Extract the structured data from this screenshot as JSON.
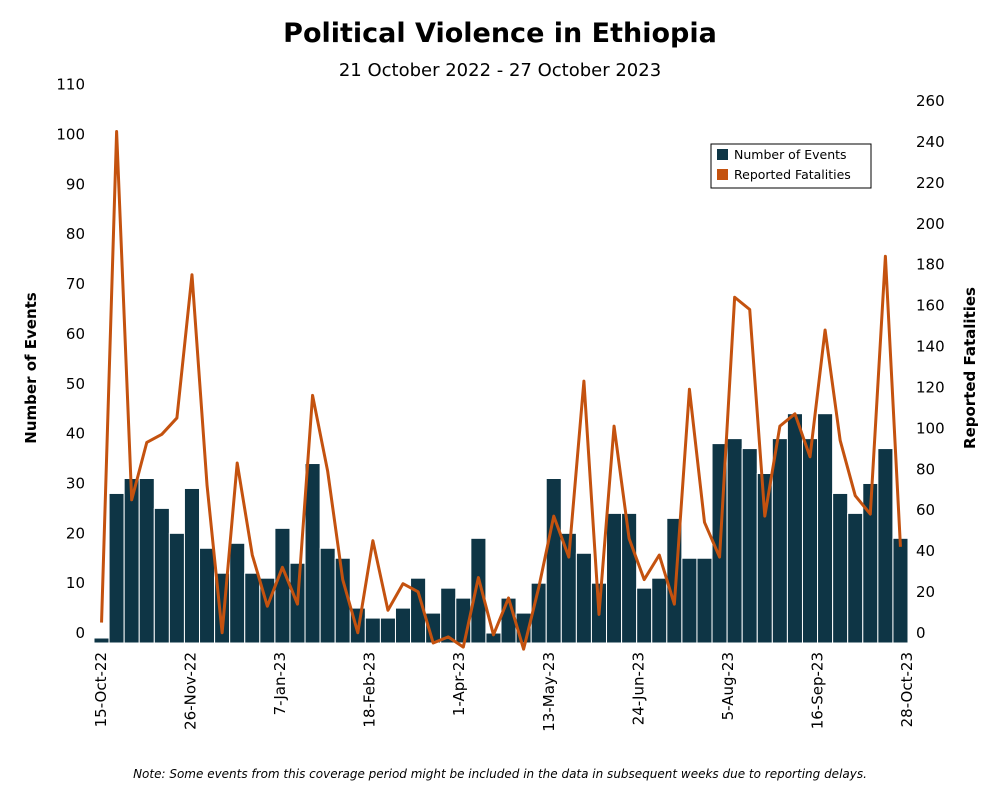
{
  "chart_data": {
    "type": "bar",
    "title": "Political Violence in Ethiopia",
    "subtitle": "21 October 2022 - 27 October 2023",
    "note": "Note: Some events from this coverage period might be included in the data in subsequent weeks due to reporting delays.",
    "ylabel": "Number of Events",
    "y2label": "Reported Fatalities",
    "ylim": [
      0,
      110
    ],
    "y2lim": [
      0,
      260
    ],
    "yticks": [
      0,
      10,
      20,
      30,
      40,
      50,
      60,
      70,
      80,
      90,
      100,
      110
    ],
    "y2ticks": [
      0,
      20,
      40,
      60,
      80,
      100,
      120,
      140,
      160,
      180,
      200,
      220,
      240,
      260
    ],
    "x_tick_labels": [
      "15-Oct-22",
      "26-Nov-22",
      "7-Jan-23",
      "18-Feb-23",
      "1-Apr-23",
      "13-May-23",
      "24-Jun-23",
      "5-Aug-23",
      "16-Sep-23",
      "28-Oct-23"
    ],
    "legend_position": "top-right",
    "grid": false,
    "colors": {
      "events": "#0e3545",
      "fatalities": "#c4520f"
    },
    "series": [
      {
        "name": "Number of Events",
        "type": "bar",
        "axis": "left",
        "values": [
          1,
          30,
          33,
          33,
          27,
          22,
          31,
          19,
          14,
          20,
          14,
          13,
          23,
          16,
          36,
          19,
          17,
          7,
          5,
          5,
          7,
          13,
          6,
          11,
          9,
          21,
          2,
          9,
          6,
          12,
          33,
          22,
          18,
          12,
          26,
          26,
          11,
          13,
          25,
          17,
          17,
          40,
          41,
          39,
          34,
          41,
          46,
          41,
          46,
          30,
          26,
          32,
          39,
          21
        ]
      },
      {
        "name": "Reported Fatalities",
        "type": "line",
        "axis": "right",
        "values": [
          10,
          250,
          70,
          98,
          102,
          110,
          180,
          77,
          5,
          88,
          43,
          18,
          37,
          19,
          121,
          84,
          31,
          5,
          50,
          16,
          29,
          25,
          0,
          3,
          -2,
          32,
          4,
          22,
          -3,
          27,
          62,
          42,
          128,
          14,
          106,
          51,
          31,
          43,
          19,
          124,
          59,
          42,
          169,
          163,
          62,
          106,
          112,
          91,
          153,
          99,
          72,
          63,
          189,
          47
        ]
      }
    ]
  }
}
